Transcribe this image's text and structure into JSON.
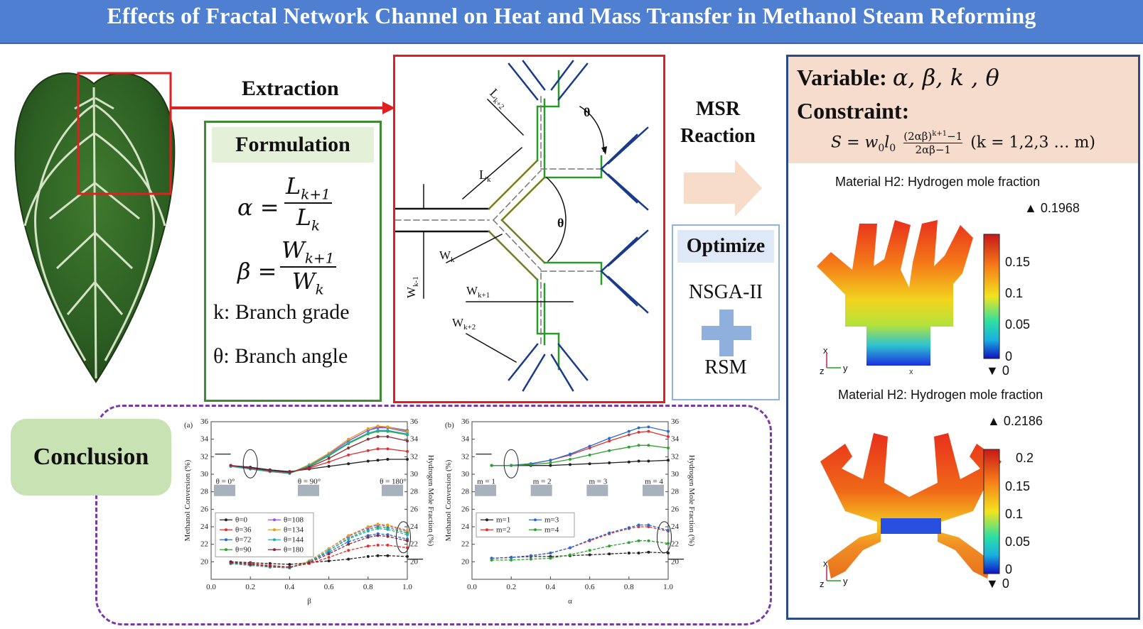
{
  "title": "Effects of Fractal Network Channel on Heat and Mass Transfer in Methanol Steam Reforming",
  "extraction_label": "Extraction",
  "formulation": {
    "heading": "Formulation",
    "alpha_lhs": "α =",
    "alpha_num": "L",
    "alpha_num_sub": "k+1",
    "alpha_den": "L",
    "alpha_den_sub": "k",
    "beta_lhs": "β =",
    "beta_num": "W",
    "beta_num_sub": "k+1",
    "beta_den": "W",
    "beta_den_sub": "k",
    "k_def": "k: Branch grade",
    "theta_def": "θ: Branch angle"
  },
  "schematic": {
    "labels": [
      "L",
      "k+2",
      "L",
      "k",
      "θ",
      "θ",
      "W",
      "k",
      "W",
      "k-1",
      "W",
      "k+1",
      "W",
      "k+2"
    ]
  },
  "msr": {
    "line1": "MSR",
    "line2": "Reaction"
  },
  "optimize": {
    "heading": "Optimize",
    "method1": "NSGA-II",
    "method2": "RSM"
  },
  "right_panel": {
    "variable_label": "Variable:",
    "variables": "α, β, k , θ",
    "constraint_label": "Constraint:",
    "equation_lhs": "S = w",
    "equation_sub0": "0",
    "equation_l": "l",
    "equation_sub1": "0",
    "equation_num": "(2αβ)",
    "equation_num_sup": "k+1",
    "equation_num_tail": "−1",
    "equation_den": "2αβ−1",
    "equation_tail": "(k = 1,2,3 … m)",
    "plot1": {
      "title": "Material H2: Hydrogen mole fraction",
      "max": "▲ 0.1968",
      "ticks": [
        "0.15",
        "0.1",
        "0.05",
        "0"
      ],
      "min": "▼ 0"
    },
    "plot2": {
      "title": "Material H2: Hydrogen mole fraction",
      "max": "▲ 0.2186",
      "ticks": [
        "0.2",
        "0.15",
        "0.1",
        "0.05",
        "0"
      ],
      "min": "▼ 0"
    },
    "axis_x": "x",
    "axis_y": "y",
    "axis_z": "z"
  },
  "conclusion_label": "Conclusion",
  "chart_data": [
    {
      "type": "line",
      "panel": "(a)",
      "xlabel": "β",
      "ylabel": "Methanol Conversion (%)",
      "ylabel_right": "Hydrogen Mole Fraction (%)",
      "xlim": [
        0.0,
        1.0
      ],
      "ylim": [
        18,
        36
      ],
      "x": [
        0.1,
        0.2,
        0.3,
        0.4,
        0.5,
        0.6,
        0.7,
        0.8,
        0.85,
        0.9,
        1.0
      ],
      "xticks": [
        "0.0",
        "0.2",
        "0.4",
        "0.6",
        "0.8",
        "1.0"
      ],
      "yticks": [
        "20",
        "22",
        "24",
        "26",
        "28",
        "30",
        "32",
        "34",
        "36"
      ],
      "insets": [
        "θ = 0°",
        "θ = 90°",
        "θ = 180°"
      ],
      "series": [
        {
          "name": "θ=0",
          "color": "#222222",
          "conversion": [
            31.0,
            30.8,
            30.5,
            30.3,
            30.6,
            30.9,
            31.2,
            31.5,
            31.6,
            31.7,
            31.7
          ],
          "h2": [
            20.0,
            19.9,
            19.8,
            19.7,
            19.9,
            20.1,
            20.3,
            20.6,
            20.7,
            20.7,
            20.6
          ]
        },
        {
          "name": "θ=36",
          "color": "#e03030",
          "conversion": [
            31.0,
            30.7,
            30.4,
            30.2,
            30.7,
            31.4,
            32.2,
            32.7,
            32.9,
            32.9,
            32.6
          ],
          "h2": [
            19.9,
            19.8,
            19.6,
            19.4,
            19.8,
            20.5,
            21.3,
            21.8,
            21.9,
            21.9,
            21.6
          ]
        },
        {
          "name": "θ=72",
          "color": "#2a6ad0",
          "conversion": [
            30.9,
            30.6,
            30.3,
            30.1,
            31.0,
            32.3,
            33.8,
            35.0,
            35.4,
            35.4,
            35.0
          ],
          "h2": [
            19.8,
            19.6,
            19.4,
            19.3,
            20.0,
            21.1,
            22.3,
            23.0,
            23.2,
            23.1,
            22.6
          ]
        },
        {
          "name": "θ=90",
          "color": "#30a030",
          "conversion": [
            30.9,
            30.6,
            30.3,
            30.1,
            30.9,
            32.1,
            33.5,
            34.6,
            34.9,
            34.9,
            34.5
          ],
          "h2": [
            19.8,
            19.6,
            19.4,
            19.3,
            20.0,
            21.3,
            22.7,
            23.7,
            24.0,
            23.9,
            23.3
          ]
        },
        {
          "name": "θ=108",
          "color": "#a050e0",
          "conversion": [
            30.9,
            30.6,
            30.3,
            30.1,
            31.0,
            32.3,
            33.8,
            35.0,
            35.3,
            35.3,
            34.8
          ],
          "h2": [
            19.8,
            19.6,
            19.4,
            19.3,
            20.1,
            21.5,
            22.9,
            23.9,
            24.2,
            24.1,
            23.5
          ]
        },
        {
          "name": "θ=134",
          "color": "#e0a020",
          "conversion": [
            30.9,
            30.6,
            30.3,
            30.1,
            31.1,
            32.4,
            34.0,
            35.2,
            35.5,
            35.4,
            34.9
          ],
          "h2": [
            19.8,
            19.6,
            19.4,
            19.3,
            20.1,
            21.5,
            23.0,
            24.0,
            24.3,
            24.2,
            23.6
          ]
        },
        {
          "name": "θ=144",
          "color": "#20b0b0",
          "conversion": [
            30.9,
            30.6,
            30.3,
            30.1,
            31.0,
            32.2,
            33.6,
            34.7,
            35.0,
            35.0,
            34.6
          ],
          "h2": [
            19.8,
            19.6,
            19.4,
            19.3,
            20.0,
            21.3,
            22.6,
            23.5,
            23.8,
            23.7,
            23.1
          ]
        },
        {
          "name": "θ=180",
          "color": "#8a2a3a",
          "conversion": [
            31.0,
            30.7,
            30.4,
            30.2,
            30.8,
            31.8,
            33.0,
            34.0,
            34.3,
            34.3,
            33.8
          ],
          "h2": [
            19.9,
            19.7,
            19.5,
            19.4,
            19.9,
            20.9,
            22.0,
            22.8,
            23.0,
            22.9,
            22.4
          ]
        }
      ]
    },
    {
      "type": "line",
      "panel": "(b)",
      "xlabel": "α",
      "ylabel": "Methanol Conversion (%)",
      "ylabel_right": "Hydrogen Mole Fraction (%)",
      "xlim": [
        0.0,
        1.0
      ],
      "ylim": [
        18,
        36
      ],
      "x": [
        0.1,
        0.2,
        0.3,
        0.4,
        0.5,
        0.6,
        0.7,
        0.8,
        0.85,
        0.9,
        1.0
      ],
      "xticks": [
        "0.0",
        "0.2",
        "0.4",
        "0.6",
        "0.8",
        "1.0"
      ],
      "yticks": [
        "20",
        "22",
        "24",
        "26",
        "28",
        "30",
        "32",
        "34",
        "36"
      ],
      "insets": [
        "m = 1",
        "m = 2",
        "m = 3",
        "m = 4"
      ],
      "series": [
        {
          "name": "m=1",
          "color": "#222222",
          "conversion": [
            31.0,
            31.0,
            31.0,
            31.0,
            31.1,
            31.2,
            31.3,
            31.4,
            31.5,
            31.5,
            31.6
          ],
          "h2": [
            20.4,
            20.5,
            20.6,
            20.6,
            20.7,
            20.8,
            20.9,
            21.0,
            21.0,
            21.1,
            21.0
          ]
        },
        {
          "name": "m=2",
          "color": "#e03030",
          "conversion": [
            31.0,
            31.0,
            31.2,
            31.6,
            32.2,
            33.0,
            33.8,
            34.5,
            34.8,
            34.9,
            34.3
          ],
          "h2": [
            20.4,
            20.5,
            20.7,
            21.0,
            21.6,
            22.4,
            23.2,
            23.8,
            24.0,
            24.0,
            23.5
          ]
        },
        {
          "name": "m=3",
          "color": "#2a6ad0",
          "conversion": [
            31.0,
            31.0,
            31.2,
            31.6,
            32.3,
            33.2,
            34.1,
            34.9,
            35.3,
            35.4,
            34.9
          ],
          "h2": [
            20.4,
            20.5,
            20.7,
            21.0,
            21.6,
            22.5,
            23.3,
            23.9,
            24.2,
            24.2,
            23.6
          ]
        },
        {
          "name": "m=4",
          "color": "#30a030",
          "conversion": [
            31.0,
            31.0,
            31.1,
            31.3,
            31.7,
            32.2,
            32.7,
            33.1,
            33.3,
            33.3,
            33.0
          ],
          "h2": [
            20.2,
            20.2,
            20.3,
            20.4,
            20.8,
            21.3,
            21.8,
            22.2,
            22.4,
            22.4,
            22.1
          ]
        }
      ]
    }
  ]
}
